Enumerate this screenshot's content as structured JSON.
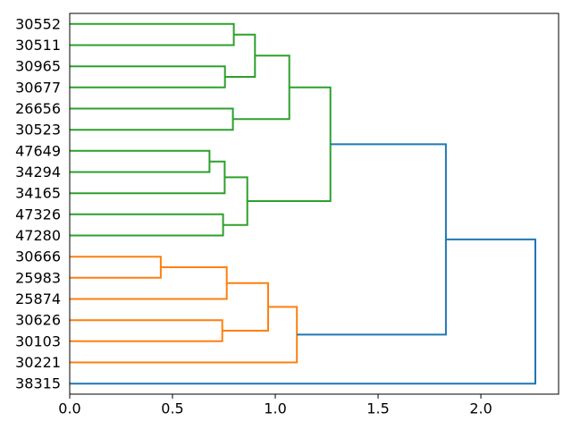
{
  "figure": {
    "kind": "matplotlib-dendrogram",
    "background": "#ffffff",
    "spine_color": "#000000"
  },
  "chart_data": {
    "type": "dendrogram",
    "orientation": "right",
    "title": "",
    "xlabel": "",
    "ylabel": "",
    "grid": false,
    "legend": null,
    "xlim": [
      0,
      2.378
    ],
    "x_ticks": [
      0.0,
      0.5,
      1.0,
      1.5,
      2.0
    ],
    "x_tick_labels": [
      "0.0",
      "0.5",
      "1.0",
      "1.5",
      "2.0"
    ],
    "leaf_labels": [
      "30552",
      "30511",
      "30965",
      "30677",
      "26656",
      "30523",
      "47649",
      "34294",
      "34165",
      "47326",
      "47280",
      "30666",
      "25983",
      "25874",
      "30626",
      "30103",
      "30221",
      "38315"
    ],
    "colors": {
      "above_threshold": "#1f77b4",
      "cluster_green": "#2ca02c",
      "cluster_orange": "#ff7f0e"
    },
    "merges": [
      {
        "id": "m1",
        "children": [
          "30552",
          "30511"
        ],
        "distance": 0.798,
        "color": "#2ca02c"
      },
      {
        "id": "m2",
        "children": [
          "30965",
          "30677"
        ],
        "distance": 0.755,
        "color": "#2ca02c"
      },
      {
        "id": "m3",
        "children": [
          "m1",
          "m2"
        ],
        "distance": 0.901,
        "color": "#2ca02c"
      },
      {
        "id": "m4",
        "children": [
          "26656",
          "30523"
        ],
        "distance": 0.794,
        "color": "#2ca02c"
      },
      {
        "id": "m5",
        "children": [
          "m3",
          "m4"
        ],
        "distance": 1.068,
        "color": "#2ca02c"
      },
      {
        "id": "m6",
        "children": [
          "47649",
          "34294"
        ],
        "distance": 0.68,
        "color": "#2ca02c"
      },
      {
        "id": "m7",
        "children": [
          "m6",
          "34165"
        ],
        "distance": 0.754,
        "color": "#2ca02c"
      },
      {
        "id": "m8",
        "children": [
          "47326",
          "47280"
        ],
        "distance": 0.746,
        "color": "#2ca02c"
      },
      {
        "id": "m9",
        "children": [
          "m7",
          "m8"
        ],
        "distance": 0.864,
        "color": "#2ca02c"
      },
      {
        "id": "m10",
        "children": [
          "m5",
          "m9"
        ],
        "distance": 1.268,
        "color": "#2ca02c"
      },
      {
        "id": "m11",
        "children": [
          "30666",
          "25983"
        ],
        "distance": 0.443,
        "color": "#ff7f0e"
      },
      {
        "id": "m12",
        "children": [
          "m11",
          "25874"
        ],
        "distance": 0.764,
        "color": "#ff7f0e"
      },
      {
        "id": "m13",
        "children": [
          "30626",
          "30103"
        ],
        "distance": 0.742,
        "color": "#ff7f0e"
      },
      {
        "id": "m14",
        "children": [
          "m12",
          "m13"
        ],
        "distance": 0.965,
        "color": "#ff7f0e"
      },
      {
        "id": "m15",
        "children": [
          "m14",
          "30221"
        ],
        "distance": 1.105,
        "color": "#ff7f0e"
      },
      {
        "id": "m16",
        "children": [
          "m10",
          "m15"
        ],
        "distance": 1.83,
        "color": "#1f77b4"
      },
      {
        "id": "m17",
        "children": [
          "m16",
          "38315"
        ],
        "distance": 2.265,
        "color": "#1f77b4"
      }
    ]
  }
}
